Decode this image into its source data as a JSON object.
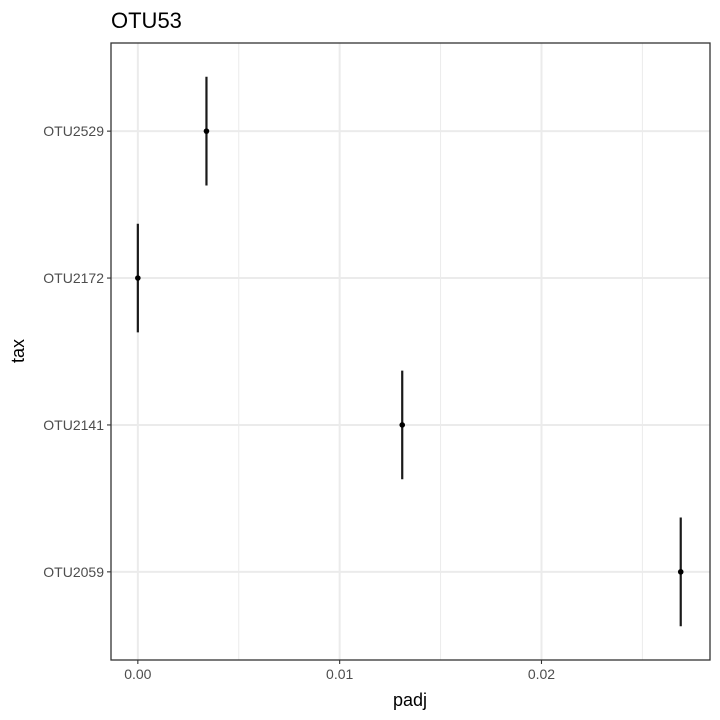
{
  "chart_data": {
    "type": "scatter",
    "title": "OTU53",
    "xlabel": "padj",
    "ylabel": "tax",
    "xlim": [
      -0.00133,
      0.02835
    ],
    "x_ticks": [
      0.0,
      0.01,
      0.02
    ],
    "x_tick_labels": [
      "0.00",
      "0.01",
      "0.02"
    ],
    "categories": [
      "OTU2529",
      "OTU2172",
      "OTU2141",
      "OTU2059"
    ],
    "points": [
      {
        "category": "OTU2529",
        "x": 0.0034
      },
      {
        "category": "OTU2172",
        "x": 0.0
      },
      {
        "category": "OTU2141",
        "x": 0.0131
      },
      {
        "category": "OTU2059",
        "x": 0.0269
      }
    ],
    "error_bar_half_span_categories": 0.37,
    "grid": true,
    "legend": "none",
    "colors": {
      "point": "#000000",
      "errorbar": "#1a1a1a",
      "grid": "#ebebeb",
      "panel_border": "#333333"
    }
  }
}
